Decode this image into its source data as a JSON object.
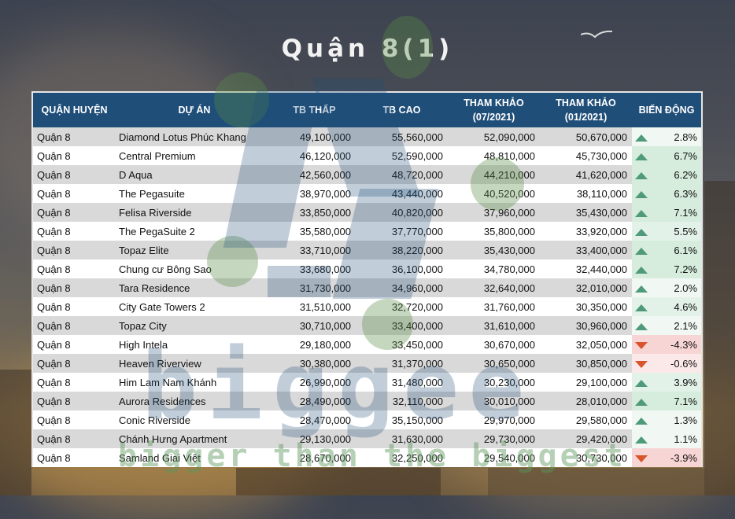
{
  "title": "Quận 8(1)",
  "table": {
    "headers": {
      "district": "QUẬN HUYỆN",
      "project": "DỰ ÁN",
      "tb_low": "TB THẤP",
      "tb_high": "TB CAO",
      "ref_0721_line1": "THAM KHẢO",
      "ref_0721_line2": "(07/2021)",
      "ref_0121_line1": "THAM KHẢO",
      "ref_0121_line2": "(01/2021)",
      "change": "BIẾN ĐỘNG"
    },
    "rows": [
      {
        "district": "Quận 8",
        "project": "Diamond Lotus Phúc Khang",
        "tb_low": "49,100,000",
        "tb_high": "55,560,000",
        "ref_0721": "52,090,000",
        "ref_0121": "50,670,000",
        "direction": "up",
        "change": "2.8%"
      },
      {
        "district": "Quận 8",
        "project": "Central Premium",
        "tb_low": "46,120,000",
        "tb_high": "52,590,000",
        "ref_0721": "48,810,000",
        "ref_0121": "45,730,000",
        "direction": "up",
        "change": "6.7%"
      },
      {
        "district": "Quận 8",
        "project": "D Aqua",
        "tb_low": "42,560,000",
        "tb_high": "48,720,000",
        "ref_0721": "44,210,000",
        "ref_0121": "41,620,000",
        "direction": "up",
        "change": "6.2%"
      },
      {
        "district": "Quận 8",
        "project": "The Pegasuite",
        "tb_low": "38,970,000",
        "tb_high": "43,440,000",
        "ref_0721": "40,520,000",
        "ref_0121": "38,110,000",
        "direction": "up",
        "change": "6.3%"
      },
      {
        "district": "Quận 8",
        "project": "Felisa Riverside",
        "tb_low": "33,850,000",
        "tb_high": "40,820,000",
        "ref_0721": "37,960,000",
        "ref_0121": "35,430,000",
        "direction": "up",
        "change": "7.1%"
      },
      {
        "district": "Quận 8",
        "project": "The PegaSuite 2",
        "tb_low": "35,580,000",
        "tb_high": "37,770,000",
        "ref_0721": "35,800,000",
        "ref_0121": "33,920,000",
        "direction": "up",
        "change": "5.5%"
      },
      {
        "district": "Quận 8",
        "project": "Topaz Elite",
        "tb_low": "33,710,000",
        "tb_high": "38,220,000",
        "ref_0721": "35,430,000",
        "ref_0121": "33,400,000",
        "direction": "up",
        "change": "6.1%"
      },
      {
        "district": "Quận 8",
        "project": "Chung cư Bông Sao",
        "tb_low": "33,680,000",
        "tb_high": "36,100,000",
        "ref_0721": "34,780,000",
        "ref_0121": "32,440,000",
        "direction": "up",
        "change": "7.2%"
      },
      {
        "district": "Quận 8",
        "project": "Tara Residence",
        "tb_low": "31,730,000",
        "tb_high": "34,960,000",
        "ref_0721": "32,640,000",
        "ref_0121": "32,010,000",
        "direction": "up",
        "change": "2.0%"
      },
      {
        "district": "Quận 8",
        "project": "City Gate Towers 2",
        "tb_low": "31,510,000",
        "tb_high": "32,720,000",
        "ref_0721": "31,760,000",
        "ref_0121": "30,350,000",
        "direction": "up",
        "change": "4.6%"
      },
      {
        "district": "Quận 8",
        "project": "Topaz City",
        "tb_low": "30,710,000",
        "tb_high": "33,400,000",
        "ref_0721": "31,610,000",
        "ref_0121": "30,960,000",
        "direction": "up",
        "change": "2.1%"
      },
      {
        "district": "Quận 8",
        "project": "High Intela",
        "tb_low": "29,180,000",
        "tb_high": "33,450,000",
        "ref_0721": "30,670,000",
        "ref_0121": "32,050,000",
        "direction": "down",
        "change": "-4.3%"
      },
      {
        "district": "Quận 8",
        "project": "Heaven Riverview",
        "tb_low": "30,380,000",
        "tb_high": "31,370,000",
        "ref_0721": "30,650,000",
        "ref_0121": "30,850,000",
        "direction": "down",
        "change": "-0.6%"
      },
      {
        "district": "Quận 8",
        "project": "Him Lam Nam Khánh",
        "tb_low": "26,990,000",
        "tb_high": "31,480,000",
        "ref_0721": "30,230,000",
        "ref_0121": "29,100,000",
        "direction": "up",
        "change": "3.9%"
      },
      {
        "district": "Quận 8",
        "project": "Aurora Residences",
        "tb_low": "28,490,000",
        "tb_high": "32,110,000",
        "ref_0721": "30,010,000",
        "ref_0121": "28,010,000",
        "direction": "up",
        "change": "7.1%"
      },
      {
        "district": "Quận 8",
        "project": "Conic Riverside",
        "tb_low": "28,470,000",
        "tb_high": "35,150,000",
        "ref_0721": "29,970,000",
        "ref_0121": "29,580,000",
        "direction": "up",
        "change": "1.3%"
      },
      {
        "district": "Quận 8",
        "project": "Chánh Hưng Apartment",
        "tb_low": "29,130,000",
        "tb_high": "31,630,000",
        "ref_0721": "29,730,000",
        "ref_0121": "29,420,000",
        "direction": "up",
        "change": "1.1%"
      },
      {
        "district": "Quận 8",
        "project": "Samland Giai Việt",
        "tb_low": "28,670,000",
        "tb_high": "32,250,000",
        "ref_0721": "29,540,000",
        "ref_0121": "30,730,000",
        "direction": "down",
        "change": "-3.9%"
      }
    ]
  },
  "icons": {
    "up": "triangle-up-green",
    "down": "triangle-down-red"
  },
  "colors": {
    "header_bg": "#1f4e79",
    "up": "#4f9a78",
    "down": "#d9532c",
    "row_alt": "#d9d9d9"
  },
  "watermark": {
    "brand": "biggee",
    "tagline": "bigger than the biggest"
  }
}
